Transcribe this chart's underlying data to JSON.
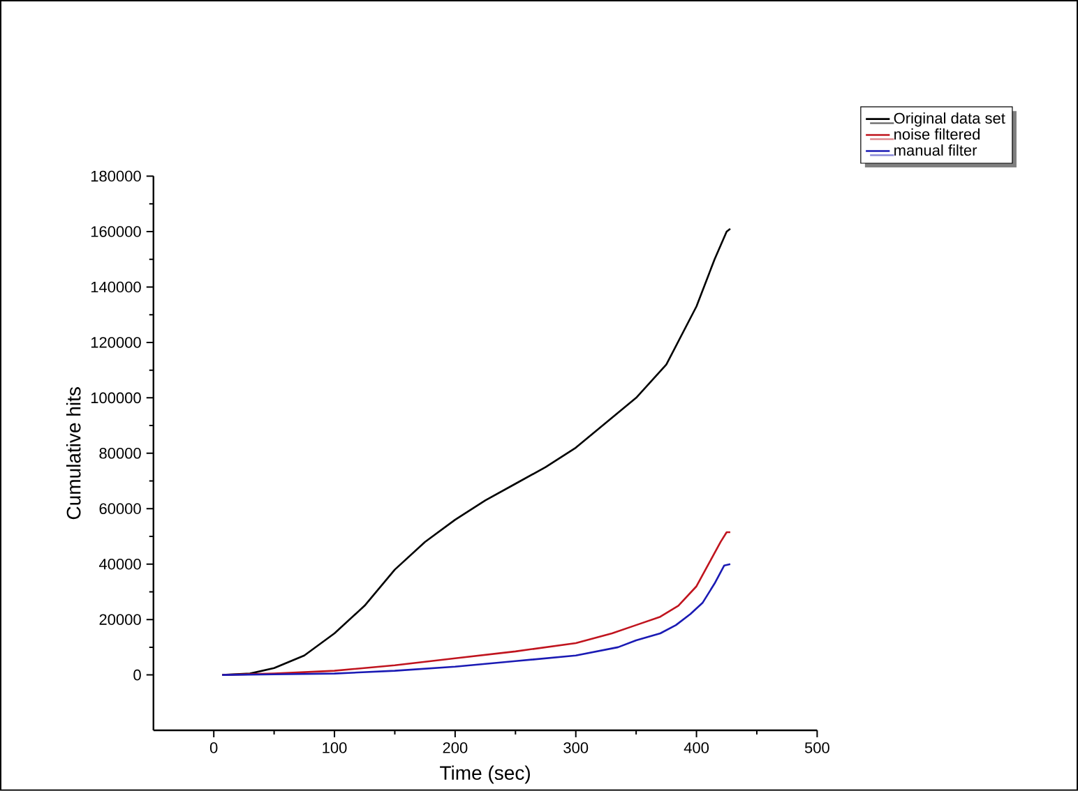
{
  "chart_data": {
    "type": "line",
    "xlabel": "Time (sec)",
    "ylabel": "Cumulative hits",
    "xlim": [
      -50,
      500
    ],
    "ylim": [
      -20000,
      180000
    ],
    "xticks": [
      0,
      100,
      200,
      300,
      400,
      500
    ],
    "yticks": [
      0,
      20000,
      40000,
      60000,
      80000,
      100000,
      120000,
      140000,
      160000,
      180000
    ],
    "legend": "top right",
    "grid": false,
    "marker": "none",
    "line_style": "solid",
    "series": [
      {
        "name": "Original data set",
        "color": "#000000",
        "x": [
          7,
          30,
          50,
          75,
          100,
          125,
          150,
          175,
          200,
          225,
          250,
          275,
          300,
          325,
          350,
          375,
          400,
          415,
          425,
          428
        ],
        "values": [
          0,
          500,
          2500,
          7000,
          15000,
          25000,
          38000,
          48000,
          56000,
          63000,
          69000,
          75000,
          82000,
          91000,
          100000,
          112000,
          133000,
          150000,
          160000,
          161000
        ]
      },
      {
        "name": "noise filtered",
        "color": "#c0141e",
        "x": [
          7,
          50,
          100,
          150,
          200,
          250,
          300,
          330,
          350,
          370,
          385,
          400,
          410,
          420,
          425,
          428
        ],
        "values": [
          0,
          500,
          1500,
          3500,
          6000,
          8500,
          11500,
          15000,
          18000,
          21000,
          25000,
          32000,
          40000,
          48000,
          51500,
          51500
        ]
      },
      {
        "name": "manual filter",
        "color": "#1a1ab4",
        "x": [
          7,
          50,
          100,
          150,
          200,
          250,
          300,
          335,
          350,
          370,
          383,
          395,
          405,
          415,
          423,
          428
        ],
        "values": [
          0,
          200,
          500,
          1500,
          3000,
          5000,
          7000,
          10000,
          12500,
          15000,
          18000,
          22000,
          26000,
          33000,
          39500,
          40000
        ]
      }
    ]
  }
}
